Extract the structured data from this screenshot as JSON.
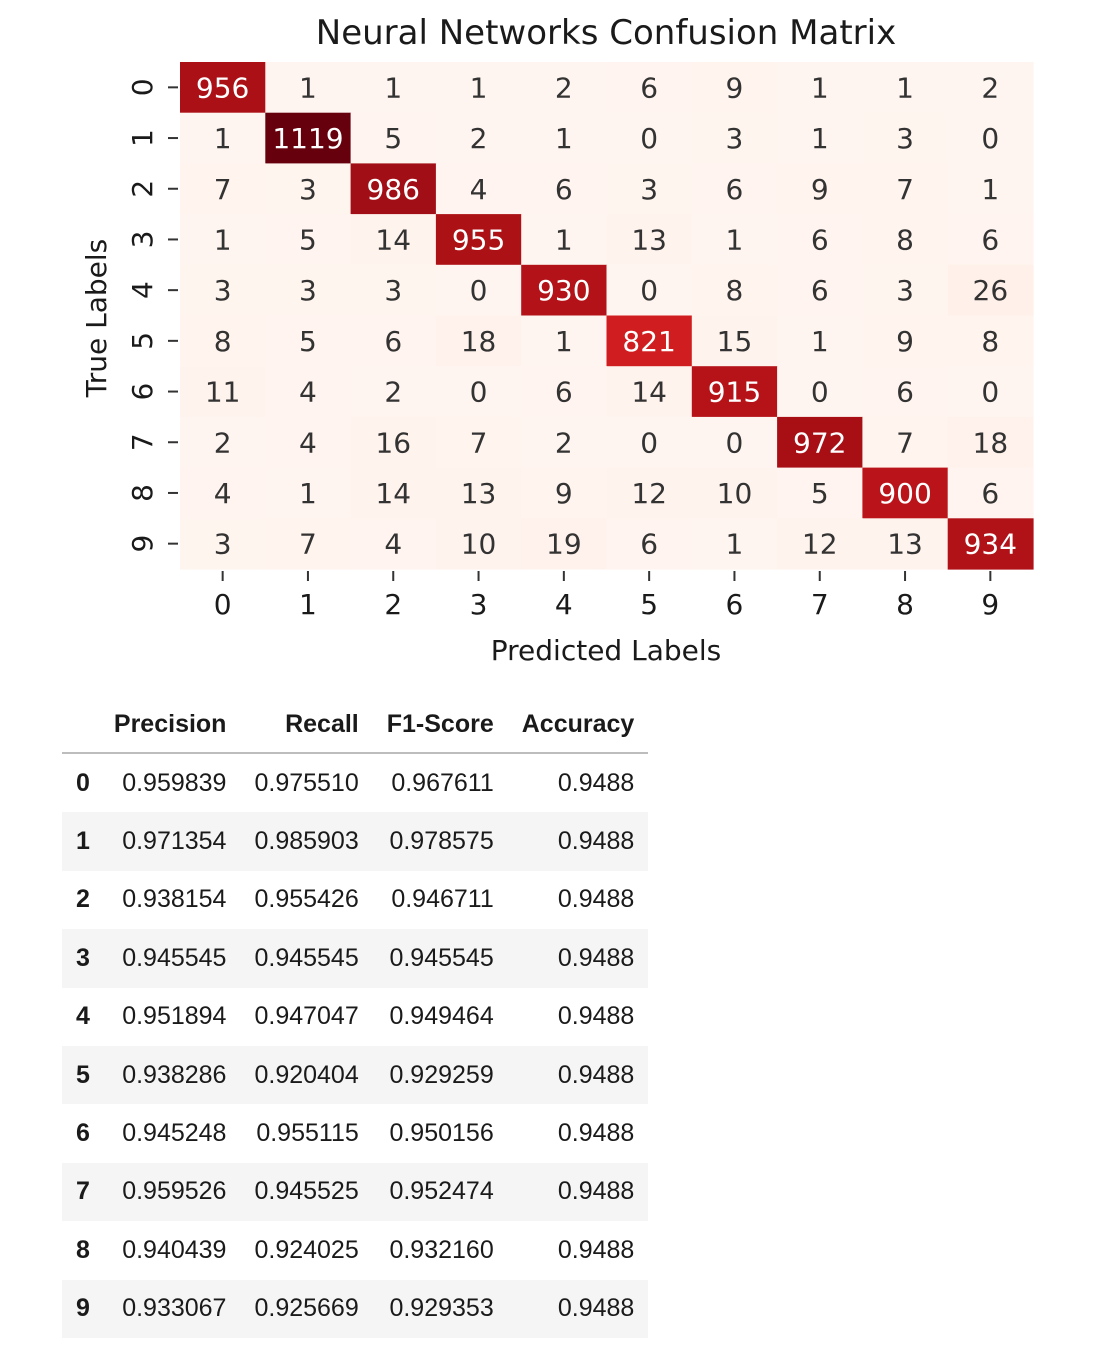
{
  "chart_data": [
    {
      "type": "heatmap",
      "title": "Neural Networks Confusion Matrix",
      "xlabel": "Predicted Labels",
      "ylabel": "True Labels",
      "x_ticks": [
        "0",
        "1",
        "2",
        "3",
        "4",
        "5",
        "6",
        "7",
        "8",
        "9"
      ],
      "y_ticks": [
        "0",
        "1",
        "2",
        "3",
        "4",
        "5",
        "6",
        "7",
        "8",
        "9"
      ],
      "matrix": [
        [
          956,
          1,
          1,
          1,
          2,
          6,
          9,
          1,
          1,
          2
        ],
        [
          1,
          1119,
          5,
          2,
          1,
          0,
          3,
          1,
          3,
          0
        ],
        [
          7,
          3,
          986,
          4,
          6,
          3,
          6,
          9,
          7,
          1
        ],
        [
          1,
          5,
          14,
          955,
          1,
          13,
          1,
          6,
          8,
          6
        ],
        [
          3,
          3,
          3,
          0,
          930,
          0,
          8,
          6,
          3,
          26
        ],
        [
          8,
          5,
          6,
          18,
          1,
          821,
          15,
          1,
          9,
          8
        ],
        [
          11,
          4,
          2,
          0,
          6,
          14,
          915,
          0,
          6,
          0
        ],
        [
          2,
          4,
          16,
          7,
          2,
          0,
          0,
          972,
          7,
          18
        ],
        [
          4,
          1,
          14,
          13,
          9,
          12,
          10,
          5,
          900,
          6
        ],
        [
          3,
          7,
          4,
          10,
          19,
          6,
          1,
          12,
          13,
          934
        ]
      ],
      "colormap": "Reds",
      "colorbar": false,
      "annotations": true
    },
    {
      "type": "table",
      "columns": [
        "",
        "Precision",
        "Recall",
        "F1-Score",
        "Accuracy"
      ],
      "rows": [
        [
          "0",
          "0.959839",
          "0.975510",
          "0.967611",
          "0.9488"
        ],
        [
          "1",
          "0.971354",
          "0.985903",
          "0.978575",
          "0.9488"
        ],
        [
          "2",
          "0.938154",
          "0.955426",
          "0.946711",
          "0.9488"
        ],
        [
          "3",
          "0.945545",
          "0.945545",
          "0.945545",
          "0.9488"
        ],
        [
          "4",
          "0.951894",
          "0.947047",
          "0.949464",
          "0.9488"
        ],
        [
          "5",
          "0.938286",
          "0.920404",
          "0.929259",
          "0.9488"
        ],
        [
          "6",
          "0.945248",
          "0.955115",
          "0.950156",
          "0.9488"
        ],
        [
          "7",
          "0.959526",
          "0.945525",
          "0.952474",
          "0.9488"
        ],
        [
          "8",
          "0.940439",
          "0.924025",
          "0.932160",
          "0.9488"
        ],
        [
          "9",
          "0.933067",
          "0.925669",
          "0.929353",
          "0.9488"
        ]
      ]
    }
  ]
}
